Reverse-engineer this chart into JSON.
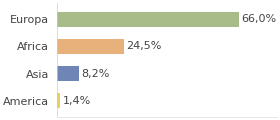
{
  "categories": [
    "America",
    "Asia",
    "Africa",
    "Europa"
  ],
  "values": [
    1.4,
    8.2,
    24.5,
    66.0
  ],
  "labels": [
    "1,4%",
    "8,2%",
    "24,5%",
    "66,0%"
  ],
  "bar_colors": [
    "#e8d060",
    "#6e85b5",
    "#e8b07a",
    "#a8bc8a"
  ],
  "background_color": "#ffffff",
  "xlim": [
    0,
    80
  ],
  "bar_height": 0.55,
  "fontsize_labels": 8.0,
  "fontsize_ticks": 8.0
}
